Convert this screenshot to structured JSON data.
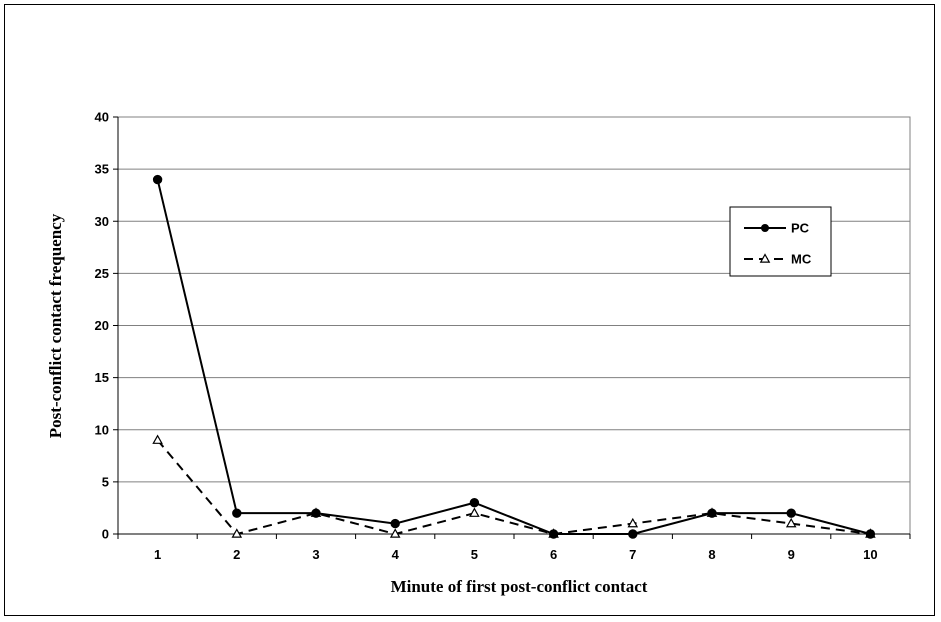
{
  "chart_data": {
    "type": "line",
    "title": "",
    "xlabel": "Minute of first post-conflict contact",
    "ylabel": "Post-conflict contact frequency",
    "x": [
      1,
      2,
      3,
      4,
      5,
      6,
      7,
      8,
      9,
      10
    ],
    "ylim": [
      0,
      40
    ],
    "yticks": [
      0,
      5,
      10,
      15,
      20,
      25,
      30,
      35,
      40
    ],
    "grid": true,
    "legend_position": "right",
    "series": [
      {
        "name": "PC",
        "values": [
          34,
          2,
          2,
          1,
          3,
          0,
          0,
          2,
          2,
          0
        ],
        "style": "solid",
        "marker": "filled-circle",
        "color": "#000000"
      },
      {
        "name": "MC",
        "values": [
          9,
          0,
          2,
          0,
          2,
          0,
          1,
          2,
          1,
          0
        ],
        "style": "dashed",
        "marker": "open-triangle",
        "color": "#000000"
      }
    ]
  }
}
